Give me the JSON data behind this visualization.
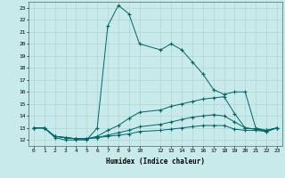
{
  "xlabel": "Humidex (Indice chaleur)",
  "bg_color": "#c8eaea",
  "grid_color": "#b0d4d4",
  "line_color": "#006666",
  "xlim": [
    -0.5,
    23.5
  ],
  "ylim": [
    11.5,
    23.5
  ],
  "xticks": [
    0,
    1,
    2,
    3,
    4,
    5,
    6,
    7,
    8,
    9,
    10,
    12,
    13,
    14,
    15,
    16,
    17,
    18,
    19,
    20,
    21,
    22,
    23
  ],
  "yticks": [
    12,
    13,
    14,
    15,
    16,
    17,
    18,
    19,
    20,
    21,
    22,
    23
  ],
  "lines": [
    {
      "x": [
        0,
        1,
        2,
        3,
        4,
        5,
        6,
        7,
        8,
        9,
        10,
        12,
        13,
        14,
        15,
        16,
        17,
        18,
        19,
        20,
        21,
        22,
        23
      ],
      "y": [
        13,
        13,
        12.2,
        12,
        12,
        12,
        13,
        21.5,
        23.2,
        22.5,
        20,
        19.5,
        20,
        19.5,
        18.5,
        17.5,
        16.2,
        15.8,
        16,
        16,
        13,
        12.8,
        13
      ]
    },
    {
      "x": [
        0,
        1,
        2,
        3,
        4,
        5,
        6,
        7,
        8,
        9,
        10,
        12,
        13,
        14,
        15,
        16,
        17,
        18,
        19,
        20,
        21,
        22,
        23
      ],
      "y": [
        13,
        13,
        12.3,
        12.2,
        12.1,
        12.1,
        12.3,
        12.8,
        13.2,
        13.8,
        14.3,
        14.5,
        14.8,
        15.0,
        15.2,
        15.4,
        15.5,
        15.6,
        14.2,
        13,
        12.9,
        12.8,
        13
      ]
    },
    {
      "x": [
        0,
        1,
        2,
        3,
        4,
        5,
        6,
        7,
        8,
        9,
        10,
        12,
        13,
        14,
        15,
        16,
        17,
        18,
        19,
        20,
        21,
        22,
        23
      ],
      "y": [
        13,
        13,
        12.3,
        12.2,
        12.1,
        12.1,
        12.2,
        12.4,
        12.6,
        12.8,
        13.1,
        13.3,
        13.5,
        13.7,
        13.9,
        14.0,
        14.1,
        14.0,
        13.5,
        13.0,
        12.9,
        12.7,
        13
      ]
    },
    {
      "x": [
        0,
        1,
        2,
        3,
        4,
        5,
        6,
        7,
        8,
        9,
        10,
        12,
        13,
        14,
        15,
        16,
        17,
        18,
        19,
        20,
        21,
        22,
        23
      ],
      "y": [
        13,
        13,
        12.3,
        12.2,
        12.1,
        12.1,
        12.2,
        12.3,
        12.4,
        12.5,
        12.7,
        12.8,
        12.9,
        13.0,
        13.1,
        13.2,
        13.2,
        13.2,
        12.9,
        12.8,
        12.8,
        12.7,
        13
      ]
    }
  ]
}
